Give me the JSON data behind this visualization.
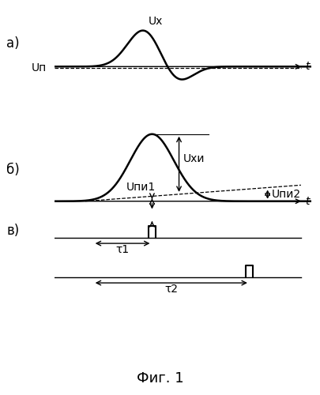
{
  "bg_color": "#ffffff",
  "line_color": "#000000",
  "fig_width": 4.06,
  "fig_height": 5.0,
  "dpi": 100,
  "label_a": "а)",
  "label_b": "б)",
  "label_v": "в)",
  "title_label": "Фиг. 1",
  "label_Ux": "Uх",
  "label_Up": "Uп",
  "label_Ukhi": "Uхи",
  "label_Upi1": "Uпи1",
  "label_Upi2": "Uпи2",
  "label_t": "t",
  "label_tau1": "τ1",
  "label_tau2": "τ2",
  "xmin": 0,
  "xmax": 10
}
